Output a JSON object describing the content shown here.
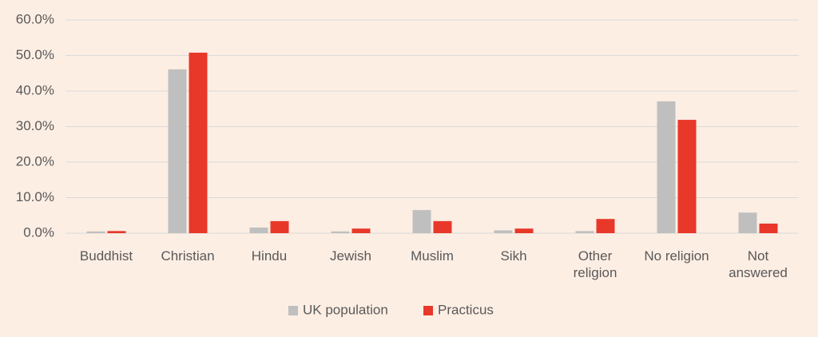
{
  "chart_data": {
    "type": "bar",
    "categories": [
      "Buddhist",
      "Christian",
      "Hindu",
      "Jewish",
      "Muslim",
      "Sikh",
      "Other religion",
      "No religion",
      "Not answered"
    ],
    "series": [
      {
        "name": "UK population",
        "color": "#bfbfbf",
        "values": [
          0.5,
          46.1,
          1.6,
          0.5,
          6.5,
          0.8,
          0.6,
          37.1,
          5.8
        ]
      },
      {
        "name": "Practicus",
        "color": "#e8382a",
        "values": [
          0.6,
          50.8,
          3.4,
          1.3,
          3.4,
          1.3,
          4.0,
          31.9,
          2.7
        ]
      }
    ],
    "ylim": [
      0,
      60
    ],
    "yticks": [
      {
        "value": 0,
        "label": "0.0%"
      },
      {
        "value": 10,
        "label": "10.0%"
      },
      {
        "value": 20,
        "label": "20.0%"
      },
      {
        "value": 30,
        "label": "30.0%"
      },
      {
        "value": 40,
        "label": "40.0%"
      },
      {
        "value": 50,
        "label": "50.0%"
      },
      {
        "value": 60,
        "label": "60.0%"
      }
    ],
    "grid": true,
    "legend": "bottom"
  }
}
